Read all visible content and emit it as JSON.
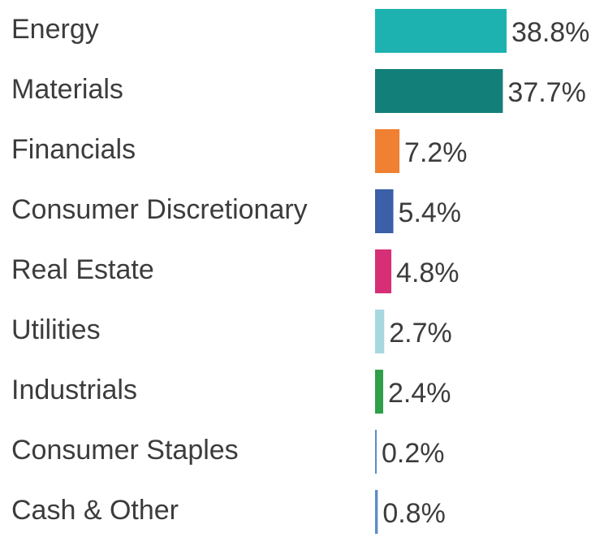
{
  "chart_data": {
    "type": "bar",
    "orientation": "horizontal",
    "categories": [
      "Energy",
      "Materials",
      "Financials",
      "Consumer Discretionary",
      "Real Estate",
      "Utilities",
      "Industrials",
      "Consumer Staples",
      "Cash & Other"
    ],
    "values": [
      38.8,
      37.7,
      7.2,
      5.4,
      4.8,
      2.7,
      2.4,
      0.2,
      0.8
    ],
    "value_labels": [
      "38.8%",
      "37.7%",
      "7.2%",
      "5.4%",
      "4.8%",
      "2.7%",
      "2.4%",
      "0.2%",
      "0.8%"
    ],
    "colors": [
      "#1db2b0",
      "#137f79",
      "#f08032",
      "#3b5fa8",
      "#d72f76",
      "#a7d8e0",
      "#2f9f49",
      "#5d8bc7",
      "#5d8bc7"
    ],
    "text_color": "#3c3c3c",
    "title": "",
    "xlabel": "",
    "ylabel": "",
    "grid": false,
    "legend": "none"
  }
}
